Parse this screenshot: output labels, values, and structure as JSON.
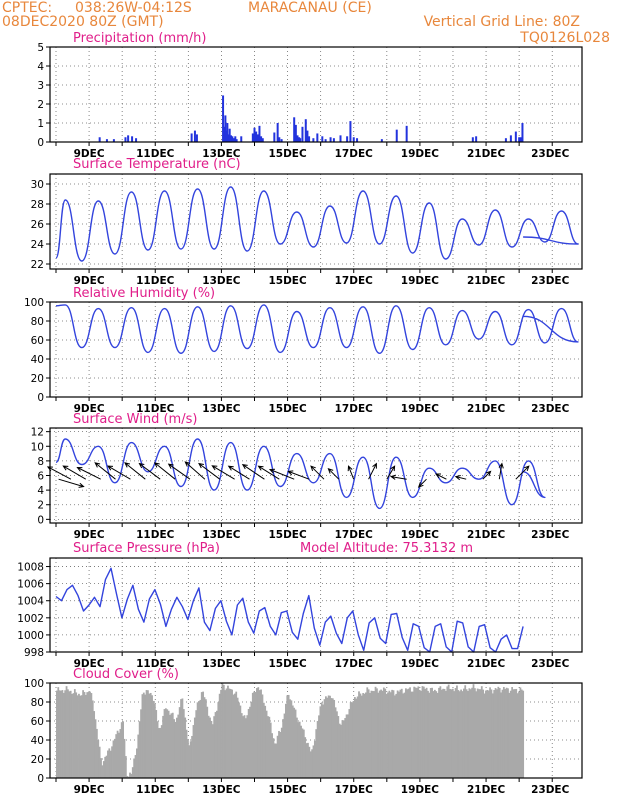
{
  "header": {
    "org": "CPTEC:",
    "coords": "038:26W-04:12S",
    "station": "MARACANAU (CE)",
    "init": "08DEC2020 80Z (GMT)",
    "grid_note": "Vertical Grid Line: 80Z",
    "run_id": "TQ0126L028"
  },
  "colors": {
    "header": "#e8873c",
    "panel_title": "#e01e8a",
    "line": "#3344dd",
    "precip_bar": "#2233dd",
    "cloud_bar": "#a9a9a9"
  },
  "chart_data": [
    {
      "type": "bar",
      "title": "Precipitation (mm/h)",
      "x_tick_labels": [
        "9DEC",
        "11DEC",
        "13DEC",
        "15DEC",
        "17DEC",
        "19DEC",
        "21DEC",
        "23DEC"
      ],
      "ylim": [
        0,
        5
      ],
      "y_ticks": [
        0,
        1,
        2,
        3,
        4,
        5
      ],
      "x_days": [
        1.32,
        1.54,
        1.75,
        2.1,
        2.18,
        2.3,
        2.42,
        4.1,
        4.2,
        4.26,
        5.05,
        5.09,
        5.12,
        5.15,
        5.18,
        5.21,
        5.25,
        5.29,
        5.33,
        5.37,
        5.42,
        5.46,
        5.6,
        5.95,
        6.0,
        6.05,
        6.1,
        6.15,
        6.2,
        6.25,
        6.6,
        6.7,
        6.75,
        6.82,
        7.2,
        7.25,
        7.3,
        7.35,
        7.38,
        7.45,
        7.55,
        7.6,
        7.65,
        7.78,
        7.9,
        8.05,
        8.15,
        8.3,
        8.4,
        8.6,
        8.8,
        8.9,
        9.0,
        9.1,
        9.85,
        10.3,
        10.6,
        12.6,
        12.7,
        13.6,
        13.75,
        13.9,
        14.0,
        14.05,
        14.1
      ],
      "values": [
        0.25,
        0.15,
        0.15,
        0.25,
        0.35,
        0.3,
        0.2,
        0.45,
        0.6,
        0.4,
        2.45,
        0.8,
        1.4,
        0.6,
        1.0,
        0.4,
        0.7,
        0.35,
        0.3,
        0.2,
        0.3,
        0.15,
        0.3,
        0.45,
        0.75,
        0.55,
        0.4,
        0.85,
        0.3,
        0.2,
        0.5,
        1.0,
        0.25,
        0.15,
        1.3,
        0.9,
        0.35,
        0.25,
        0.2,
        0.8,
        1.2,
        0.6,
        0.3,
        0.2,
        0.45,
        0.3,
        0.15,
        0.25,
        0.2,
        0.35,
        0.3,
        1.1,
        0.25,
        0.2,
        0.15,
        0.65,
        0.85,
        0.25,
        0.3,
        0.2,
        0.35,
        0.55,
        0.25,
        0.25,
        1.0
      ]
    },
    {
      "type": "line",
      "title": "Surface Temperature (nC)",
      "x_tick_labels": [
        "9DEC",
        "11DEC",
        "13DEC",
        "15DEC",
        "17DEC",
        "19DEC",
        "21DEC",
        "23DEC"
      ],
      "ylim": [
        21.5,
        31
      ],
      "y_ticks": [
        22,
        24,
        26,
        28,
        30
      ],
      "daily_max": [
        28.4,
        28.3,
        29.2,
        29.3,
        29.5,
        29.7,
        29.3,
        27.2,
        27.8,
        29.3,
        28.8,
        28.1,
        26.5,
        27.4,
        26.5,
        27.3
      ],
      "daily_min": [
        22.3,
        23.0,
        23.4,
        23.5,
        23.5,
        23.3,
        24.0,
        23.7,
        24.1,
        24.0,
        23.1,
        22.5,
        23.9,
        23.7,
        24.2,
        24.0
      ],
      "start_value": 22.6,
      "end_value": 24.7
    },
    {
      "type": "line",
      "title": "Relative Humidity (%)",
      "x_tick_labels": [
        "9DEC",
        "11DEC",
        "13DEC",
        "15DEC",
        "17DEC",
        "19DEC",
        "21DEC",
        "23DEC"
      ],
      "ylim": [
        0,
        100
      ],
      "y_ticks": [
        0,
        20,
        40,
        60,
        80,
        100
      ],
      "daily_max": [
        97,
        93,
        94,
        93,
        95,
        96,
        97,
        90,
        94,
        95,
        96,
        94,
        91,
        90,
        92,
        93
      ],
      "daily_min": [
        52,
        52,
        47,
        46,
        48,
        51,
        47,
        52,
        52,
        46,
        50,
        55,
        61,
        55,
        57,
        58
      ],
      "start_value": 96,
      "end_value": 85
    },
    {
      "type": "line",
      "title": "Surface Wind (m/s)",
      "x_tick_labels": [
        "9DEC",
        "11DEC",
        "13DEC",
        "15DEC",
        "17DEC",
        "19DEC",
        "21DEC",
        "23DEC"
      ],
      "ylim": [
        -0.5,
        12.5
      ],
      "y_ticks": [
        0,
        2,
        4,
        6,
        8,
        10,
        12
      ],
      "daily_max": [
        11.0,
        10.0,
        10.5,
        10.0,
        11.0,
        10.5,
        10.0,
        9.0,
        9.0,
        8.5,
        8.5,
        7.0,
        7.0,
        8.0,
        8.0
      ],
      "daily_min": [
        7.5,
        5.0,
        6.5,
        4.5,
        4.0,
        4.0,
        4.5,
        5.0,
        3.0,
        1.5,
        3.0,
        5.0,
        5.5,
        2.0,
        3.0
      ],
      "start_value": 7.8,
      "end_value": 6.5,
      "vector_days": [
        0.08,
        0.45,
        0.9,
        1.35,
        1.8,
        2.25,
        2.7,
        3.15,
        3.6,
        4.05,
        4.5,
        4.95,
        5.4,
        5.85,
        6.3,
        6.75,
        7.2,
        7.65,
        8.1,
        8.55,
        9.0,
        9.45,
        10.0,
        10.6,
        11.2,
        11.8,
        12.4,
        12.9,
        13.4,
        13.9
      ],
      "vector_u": [
        1.0,
        -1.5,
        -1.2,
        -1.2,
        -1.0,
        -1.2,
        -1.0,
        -0.8,
        -1.0,
        -1.0,
        -0.8,
        -0.8,
        -1.0,
        -0.8,
        -0.9,
        -0.8,
        -1.0,
        -0.8,
        -0.5,
        -0.4,
        -0.2,
        0.3,
        0.3,
        -0.6,
        -0.3,
        -0.4,
        -0.4,
        0.3,
        0.1,
        0.5
      ],
      "vector_v": [
        -0.3,
        0.8,
        0.7,
        0.6,
        0.8,
        0.7,
        0.8,
        0.6,
        0.8,
        0.7,
        0.7,
        0.6,
        0.6,
        0.5,
        0.6,
        0.5,
        0.4,
        0.3,
        0.5,
        0.4,
        0.5,
        0.6,
        0.5,
        0.1,
        -0.3,
        0.2,
        0.1,
        0.3,
        0.6,
        0.5
      ]
    },
    {
      "type": "line",
      "title": "Surface Pressure (hPa)",
      "annotation": "Model Altitude: 75.3132 m",
      "x_tick_labels": [
        "9DEC",
        "11DEC",
        "13DEC",
        "15DEC",
        "17DEC",
        "19DEC",
        "21DEC",
        "23DEC"
      ],
      "ylim": [
        998,
        1009
      ],
      "y_ticks": [
        998,
        1000,
        1002,
        1004,
        1006,
        1008
      ],
      "values": [
        1004.5,
        1004.0,
        1005.3,
        1005.8,
        1004.6,
        1002.8,
        1003.5,
        1004.4,
        1003.3,
        1006.5,
        1007.8,
        1004.8,
        1002.0,
        1004.2,
        1005.8,
        1003.0,
        1001.5,
        1004.2,
        1005.3,
        1003.6,
        1001.0,
        1003.0,
        1004.4,
        1003.3,
        1001.8,
        1004.0,
        1005.5,
        1001.5,
        1000.5,
        1003.1,
        1004.0,
        1001.6,
        1000.0,
        1003.5,
        1004.3,
        1001.5,
        1000.2,
        1002.8,
        1003.2,
        1001.0,
        1000.0,
        1002.6,
        1002.8,
        1000.3,
        999.5,
        1002.5,
        1004.6,
        1000.8,
        998.8,
        1001.5,
        1002.2,
        1000.2,
        999.0,
        1002.0,
        1002.8,
        1000.0,
        998.2,
        1001.4,
        1002.0,
        999.6,
        999.0,
        1002.4,
        1002.5,
        999.7,
        998.2,
        1001.3,
        1001.0,
        998.5,
        998.0,
        1001.0,
        1001.3,
        998.6,
        998.0,
        1001.6,
        1001.4,
        998.6,
        998.0,
        1001.0,
        1001.2,
        998.5,
        998.0,
        999.5,
        1000.0,
        998.4,
        998.4,
        1001.0
      ]
    },
    {
      "type": "bar",
      "title": "Cloud Cover (%)",
      "x_tick_labels": [
        "9DEC",
        "11DEC",
        "13DEC",
        "15DEC",
        "17DEC",
        "19DEC",
        "21DEC",
        "23DEC"
      ],
      "ylim": [
        0,
        100
      ],
      "y_ticks": [
        0,
        20,
        40,
        60,
        80,
        100
      ],
      "profile_days": [
        0,
        0.35,
        0.5,
        0.75,
        1.0,
        1.12,
        1.35,
        1.6,
        2.0,
        2.12,
        2.25,
        2.45,
        2.6,
        2.9,
        3.1,
        3.3,
        3.6,
        3.8,
        4.0,
        4.2,
        4.4,
        4.7,
        5.0,
        5.4,
        5.7,
        5.9,
        6.1,
        6.4,
        6.6,
        6.8,
        7.0,
        7.2,
        7.5,
        7.7,
        8.0,
        8.3,
        8.6,
        9.0,
        9.4,
        9.8,
        10.2,
        10.6,
        11.0,
        11.4,
        11.8,
        12.2,
        12.6,
        13.0,
        13.4,
        13.8,
        14.1
      ],
      "profile_values": [
        92,
        93,
        90,
        88,
        92,
        75,
        15,
        30,
        60,
        5,
        3,
        40,
        92,
        88,
        50,
        75,
        60,
        85,
        30,
        70,
        93,
        55,
        98,
        90,
        60,
        85,
        98,
        65,
        35,
        55,
        90,
        70,
        45,
        25,
        80,
        88,
        55,
        85,
        92,
        93,
        90,
        93,
        95,
        92,
        95,
        93,
        95,
        92,
        94,
        93,
        92
      ]
    }
  ]
}
